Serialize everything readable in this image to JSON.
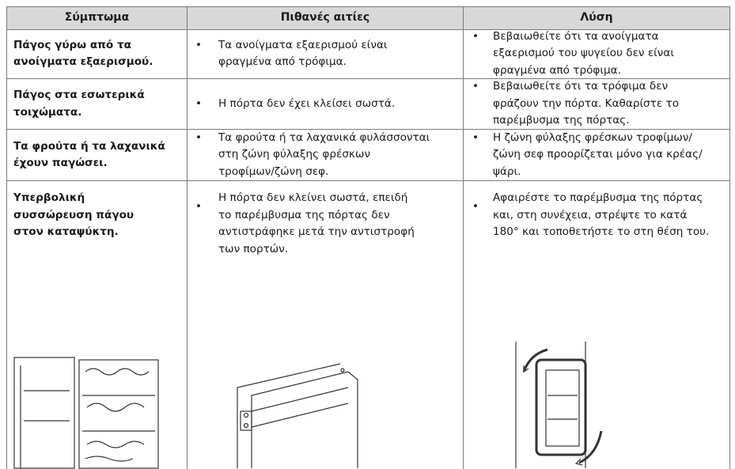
{
  "table": {
    "header": [
      "Σύμπτωμα",
      "Πιθανές αιτίες",
      "Λύση"
    ],
    "rows": [
      {
        "symptom": [
          "Πάγος γύρω από τα",
          "ανοίγματα εξαερισμού."
        ],
        "cause": [
          "Τα ανοίγματα εξαερισμού είναι",
          "φραγμένα από τρόφιμα."
        ],
        "solution": [
          "Βεβαιωθείτε ότι τα ανοίγματα",
          "εξαερισμού του ψυγείου δεν είναι",
          "φραγμένα από τρόφιμα."
        ]
      },
      {
        "symptom": [
          "Πάγος στα εσωτερικά",
          "τοιχώματα."
        ],
        "cause": [
          "Η πόρτα δεν έχει κλείσει σωστά."
        ],
        "solution": [
          "Βεβαιωθείτε ότι τα τρόφιμα δεν",
          "φράζουν την πόρτα. Καθαρίστε το",
          "παρέμβυσμα της πόρτας."
        ]
      },
      {
        "symptom": [
          "Τα φρούτα ή τα λαχανικά",
          "έχουν παγώσει."
        ],
        "cause": [
          "Τα φρούτα ή τα λαχανικά φυλάσσονται",
          "στη ζώνη φύλαξης φρέσκων",
          "τροφίμων/ζώνη σεφ."
        ],
        "solution": [
          "Η ζώνη φύλαξης φρέσκων τροφίμων/",
          "ζώνη σεφ προορίζεται μόνο για κρέας/",
          "ψάρι."
        ]
      },
      {
        "symptom": [
          "Υπερβολική",
          "συσσώρευση πάγου",
          "στον καταψύκτη."
        ],
        "cause": [
          "Η πόρτα δεν κλείνει σωστά, επειδή",
          "το παρέμβυσμα της πόρτας δεν",
          "αντιστράφηκε μετά την αντιστροφή",
          "των πορτών."
        ],
        "solution": [
          "Αφαιρέστε το παρέμβυσμα της πόρτας",
          "και, στη συνέχεια, στρέψτε το κατά",
          "180° και τοποθετήστε το στη θέση του."
        ]
      }
    ]
  }
}
